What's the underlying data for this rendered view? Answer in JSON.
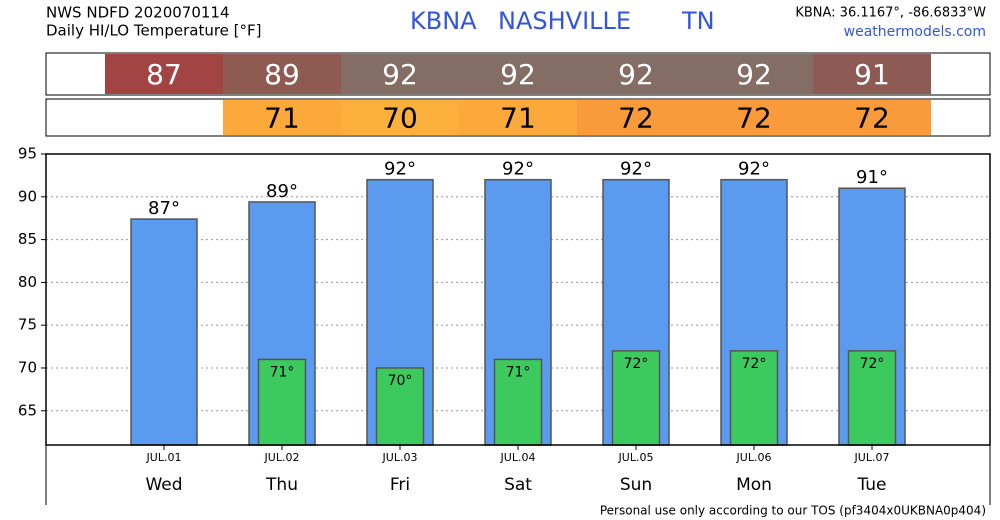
{
  "header": {
    "source": "NWS NDFD 2020070114",
    "subtitle": "Daily HI/LO Temperature [°F]",
    "station": "KBNA",
    "city": "NASHVILLE",
    "state": "TN",
    "coords": "KBNA: 36.1167°, -86.6833°W",
    "site": "weathermodels.com"
  },
  "hi_strip": {
    "values": [
      87,
      89,
      92,
      92,
      92,
      92,
      91
    ],
    "colors": [
      "#a34444",
      "#8f5a52",
      "#836d65",
      "#836d65",
      "#836d65",
      "#836d65",
      "#8e5a54"
    ]
  },
  "lo_strip": {
    "values": [
      null,
      71,
      70,
      71,
      72,
      72,
      72
    ],
    "colors": [
      null,
      "#fba93a",
      "#fbb03b",
      "#fba93a",
      "#f99b3a",
      "#f99b3a",
      "#f99b3a"
    ]
  },
  "chart_data": {
    "type": "bar",
    "categories": [
      "Wed",
      "Thu",
      "Fri",
      "Sat",
      "Sun",
      "Mon",
      "Tue"
    ],
    "dates": [
      "JUL.01",
      "JUL.02",
      "JUL.03",
      "JUL.04",
      "JUL.05",
      "JUL.06",
      "JUL.07"
    ],
    "series": [
      {
        "color": "#5b9bef",
        "values": [
          87.4,
          89.4,
          92,
          92,
          92,
          92,
          91
        ],
        "value_labels": [
          "87°",
          "89°",
          "92°",
          "92°",
          "92°",
          "92°",
          "91°"
        ]
      },
      {
        "color": "#3cc95e",
        "values": [
          null,
          71,
          70,
          71,
          72,
          72,
          72
        ],
        "value_labels": [
          null,
          "71°",
          "70°",
          "71°",
          "72°",
          "72°",
          "72°"
        ]
      }
    ],
    "ylim": [
      61,
      95
    ],
    "yticks": [
      65,
      70,
      75,
      80,
      85,
      90,
      95
    ],
    "grid": true
  },
  "footer": "Personal use only according to our TOS (pf3404x0UKBNA0p404)"
}
